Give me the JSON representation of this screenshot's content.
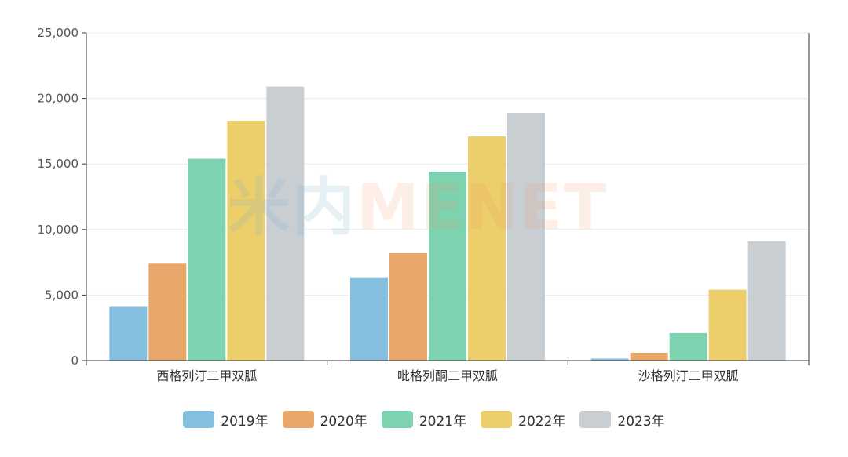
{
  "watermark": {
    "part1": "米内",
    "part2": "MENET"
  },
  "chart_data": {
    "type": "bar",
    "categories": [
      "西格列汀二甲双胍",
      "吡格列酮二甲双胍",
      "沙格列汀二甲双胍"
    ],
    "series": [
      {
        "name": "2019年",
        "color": "#85bfdf",
        "values": [
          4100,
          6300,
          150
        ]
      },
      {
        "name": "2020年",
        "color": "#e9a76a",
        "values": [
          7400,
          8200,
          600
        ]
      },
      {
        "name": "2021年",
        "color": "#7dd3b0",
        "values": [
          15400,
          14400,
          2100
        ]
      },
      {
        "name": "2022年",
        "color": "#ecce6b",
        "values": [
          18300,
          17100,
          5400
        ]
      },
      {
        "name": "2023年",
        "color": "#c9ced3",
        "values": [
          20900,
          18900,
          9100
        ]
      }
    ],
    "ylim": [
      0,
      25000
    ],
    "yticks": [
      "0",
      "5,000",
      "10,000",
      "15,000",
      "20,000",
      "25,000"
    ],
    "ytick_values": [
      0,
      5000,
      10000,
      15000,
      20000,
      25000
    ],
    "grid": true,
    "legend_position": "bottom"
  }
}
